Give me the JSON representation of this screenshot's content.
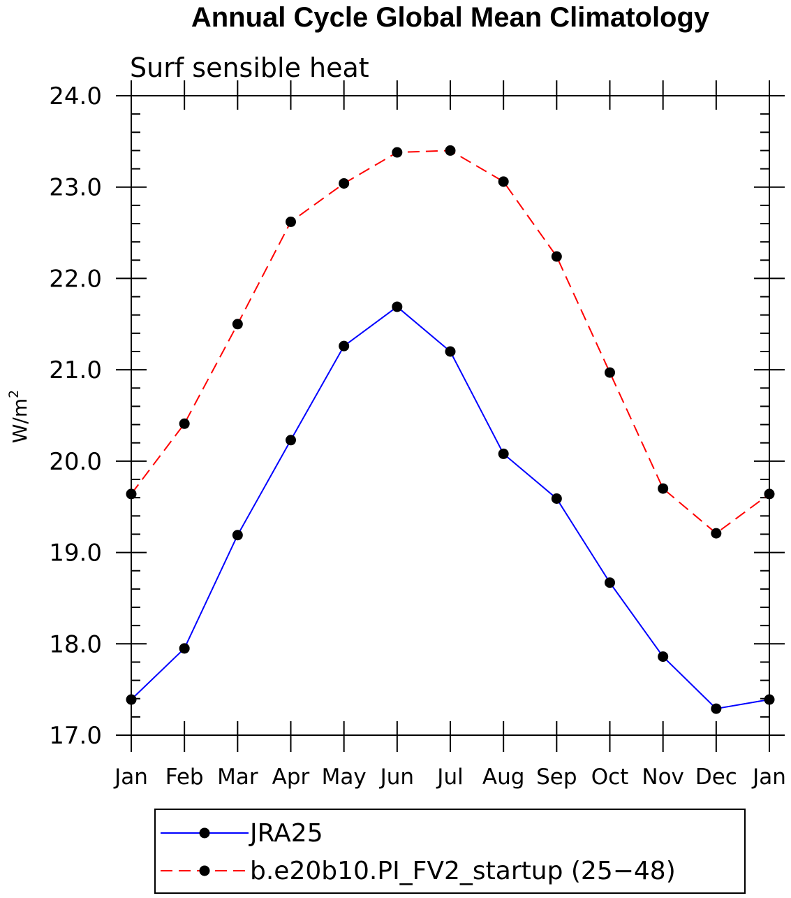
{
  "chart_data": {
    "type": "line",
    "title": "Annual Cycle Global Mean Climatology",
    "subtitle": "Surf sensible heat",
    "ylabel_base": "W/m",
    "ylabel_sup": "2",
    "categories": [
      "Jan",
      "Feb",
      "Mar",
      "Apr",
      "May",
      "Jun",
      "Jul",
      "Aug",
      "Sep",
      "Oct",
      "Nov",
      "Dec",
      "Jan"
    ],
    "ylim": [
      17.0,
      24.0
    ],
    "yticks": [
      "17.0",
      "18.0",
      "19.0",
      "20.0",
      "21.0",
      "22.0",
      "23.0",
      "24.0"
    ],
    "grid": false,
    "legend_position": "bottom",
    "series": [
      {
        "name": "JRA25",
        "color": "#0000ff",
        "dash": "solid",
        "values": [
          17.39,
          17.95,
          19.19,
          20.23,
          21.26,
          21.69,
          21.2,
          20.08,
          19.59,
          18.67,
          17.86,
          17.29,
          17.39
        ]
      },
      {
        "name": "b.e20b10.PI_FV2_startup (25−48)",
        "color": "#ff0000",
        "dash": "dashed",
        "values": [
          19.64,
          20.41,
          21.5,
          22.62,
          23.04,
          23.38,
          23.4,
          23.06,
          22.24,
          20.97,
          19.7,
          19.21,
          19.64
        ]
      }
    ]
  }
}
